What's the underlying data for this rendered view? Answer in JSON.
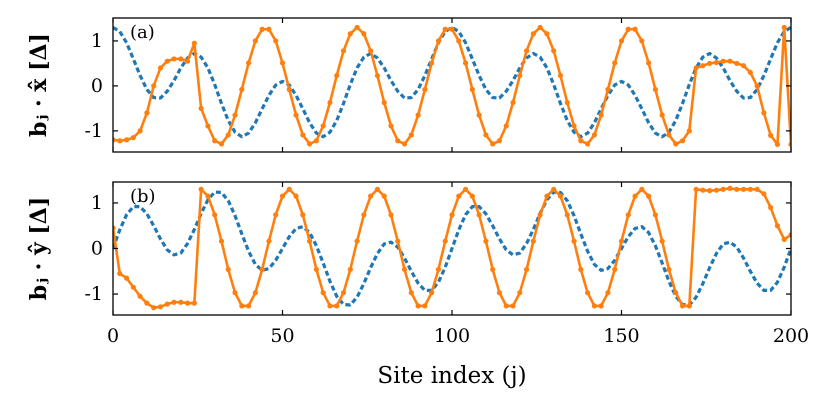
{
  "chart_data": [
    {
      "type": "line",
      "panel_label": "(a)",
      "ylabel": "bⱼ · x̂ [Δ]",
      "xtick_labels": false,
      "xlim": [
        0,
        200
      ],
      "xticks": [
        0,
        50,
        100,
        150,
        200
      ],
      "ylim": [
        -1.47,
        1.51
      ],
      "yticks": [
        -1,
        0,
        1
      ],
      "x": [
        0,
        2,
        4,
        6,
        8,
        10,
        12,
        14,
        16,
        18,
        20,
        22,
        24,
        26,
        28,
        30,
        32,
        34,
        36,
        38,
        40,
        42,
        44,
        46,
        48,
        50,
        52,
        54,
        56,
        58,
        60,
        62,
        64,
        66,
        68,
        70,
        72,
        74,
        76,
        78,
        80,
        82,
        84,
        86,
        88,
        90,
        92,
        94,
        96,
        98,
        100,
        102,
        104,
        106,
        108,
        110,
        112,
        114,
        116,
        118,
        120,
        122,
        124,
        126,
        128,
        130,
        132,
        134,
        136,
        138,
        140,
        142,
        144,
        146,
        148,
        150,
        152,
        154,
        156,
        158,
        160,
        162,
        164,
        166,
        168,
        170,
        172,
        174,
        176,
        178,
        180,
        182,
        184,
        186,
        188,
        190,
        192,
        194,
        196,
        198,
        200
      ],
      "series": [
        {
          "color": "#1f77b4",
          "style": "dashed",
          "values": [
            1.3,
            1.21,
            0.96,
            0.6,
            0.23,
            -0.08,
            -0.26,
            -0.27,
            -0.12,
            0.12,
            0.4,
            0.62,
            0.72,
            0.64,
            0.4,
            0.03,
            -0.39,
            -0.77,
            -1.03,
            -1.13,
            -1.05,
            -0.82,
            -0.51,
            -0.21,
            0.02,
            0.1,
            0.02,
            -0.21,
            -0.51,
            -0.82,
            -1.05,
            -1.13,
            -1.03,
            -0.77,
            -0.39,
            0.03,
            0.4,
            0.64,
            0.72,
            0.62,
            0.4,
            0.12,
            -0.12,
            -0.27,
            -0.26,
            -0.08,
            0.23,
            0.6,
            0.96,
            1.21,
            1.3,
            1.21,
            0.96,
            0.6,
            0.23,
            -0.08,
            -0.26,
            -0.27,
            -0.12,
            0.12,
            0.4,
            0.62,
            0.72,
            0.64,
            0.4,
            0.03,
            -0.39,
            -0.77,
            -1.03,
            -1.13,
            -1.05,
            -0.82,
            -0.51,
            -0.21,
            0.02,
            0.1,
            0.02,
            -0.21,
            -0.51,
            -0.82,
            -1.05,
            -1.13,
            -1.03,
            -0.77,
            -0.39,
            0.03,
            0.4,
            0.64,
            0.72,
            0.62,
            0.4,
            0.12,
            -0.12,
            -0.27,
            -0.26,
            -0.08,
            0.23,
            0.6,
            0.96,
            1.21,
            1.3
          ]
        },
        {
          "color": "#ff7f0e",
          "style": "markers",
          "values": [
            -1.2,
            -1.22,
            -1.2,
            -1.15,
            -1.0,
            -0.6,
            0.0,
            0.4,
            0.55,
            0.6,
            0.6,
            0.55,
            0.95,
            -0.5,
            -0.89,
            -1.22,
            -1.29,
            -1.09,
            -0.65,
            -0.08,
            0.51,
            1.0,
            1.26,
            1.26,
            1.0,
            0.51,
            -0.08,
            -0.65,
            -1.09,
            -1.29,
            -1.22,
            -0.89,
            -0.37,
            0.23,
            0.78,
            1.16,
            1.3,
            1.16,
            0.78,
            0.23,
            -0.37,
            -0.89,
            -1.22,
            -1.29,
            -1.09,
            -0.65,
            -0.08,
            0.51,
            1.0,
            1.26,
            1.26,
            1.0,
            0.51,
            -0.08,
            -0.65,
            -1.09,
            -1.29,
            -1.22,
            -0.89,
            -0.37,
            0.23,
            0.78,
            1.16,
            1.3,
            1.16,
            0.78,
            0.23,
            -0.37,
            -0.89,
            -1.22,
            -1.29,
            -1.09,
            -0.65,
            -0.08,
            0.51,
            1.0,
            1.26,
            1.26,
            1.0,
            0.51,
            -0.08,
            -0.65,
            -1.09,
            -1.29,
            -1.22,
            -1.0,
            0.4,
            0.45,
            0.5,
            0.52,
            0.55,
            0.55,
            0.5,
            0.45,
            0.3,
            0.0,
            -0.6,
            -1.1,
            -1.3,
            1.3,
            -1.3
          ]
        }
      ]
    },
    {
      "type": "line",
      "panel_label": "(b)",
      "ylabel": "bⱼ · ŷ [Δ]",
      "xlabel": "Site index (j)",
      "xlim": [
        0,
        200
      ],
      "xticks": [
        0,
        50,
        100,
        150,
        200
      ],
      "ylim": [
        -1.46,
        1.46
      ],
      "yticks": [
        -1,
        0,
        1
      ],
      "x": [
        0,
        2,
        4,
        6,
        8,
        10,
        12,
        14,
        16,
        18,
        20,
        22,
        24,
        26,
        28,
        30,
        32,
        34,
        36,
        38,
        40,
        42,
        44,
        46,
        48,
        50,
        52,
        54,
        56,
        58,
        60,
        62,
        64,
        66,
        68,
        70,
        72,
        74,
        76,
        78,
        80,
        82,
        84,
        86,
        88,
        90,
        92,
        94,
        96,
        98,
        100,
        102,
        104,
        106,
        108,
        110,
        112,
        114,
        116,
        118,
        120,
        122,
        124,
        126,
        128,
        130,
        132,
        134,
        136,
        138,
        140,
        142,
        144,
        146,
        148,
        150,
        152,
        154,
        156,
        158,
        160,
        162,
        164,
        166,
        168,
        170,
        172,
        174,
        176,
        178,
        180,
        182,
        184,
        186,
        188,
        190,
        192,
        194,
        196,
        198,
        200
      ],
      "series": [
        {
          "color": "#1f77b4",
          "style": "dashed",
          "values": [
            0,
            0.41,
            0.74,
            0.92,
            0.92,
            0.76,
            0.5,
            0.21,
            -0.03,
            -0.14,
            -0.1,
            0.11,
            0.42,
            0.77,
            1.07,
            1.24,
            1.23,
            1.05,
            0.72,
            0.32,
            -0.06,
            -0.35,
            -0.48,
            -0.44,
            -0.26,
            0,
            0.26,
            0.44,
            0.48,
            0.35,
            0.06,
            -0.32,
            -0.72,
            -1.05,
            -1.23,
            -1.24,
            -1.07,
            -0.77,
            -0.42,
            -0.11,
            0.1,
            0.14,
            0.03,
            -0.21,
            -0.5,
            -0.76,
            -0.92,
            -0.92,
            -0.74,
            -0.41,
            0,
            0.41,
            0.74,
            0.92,
            0.92,
            0.76,
            0.5,
            0.21,
            -0.03,
            -0.14,
            -0.1,
            0.11,
            0.42,
            0.77,
            1.07,
            1.24,
            1.23,
            1.05,
            0.72,
            0.32,
            -0.06,
            -0.35,
            -0.48,
            -0.44,
            -0.26,
            0,
            0.26,
            0.44,
            0.48,
            0.35,
            0.06,
            -0.32,
            -0.72,
            -1.05,
            -1.23,
            -1.24,
            -1.07,
            -0.77,
            -0.42,
            -0.11,
            0.1,
            0.14,
            0.03,
            -0.21,
            -0.5,
            -0.76,
            -0.92,
            -0.92,
            -0.74,
            -0.41,
            0
          ]
        },
        {
          "color": "#ff7f0e",
          "style": "markers",
          "values": [
            0.45,
            -0.55,
            -0.65,
            -0.85,
            -1.05,
            -1.2,
            -1.3,
            -1.28,
            -1.22,
            -1.18,
            -1.18,
            -1.2,
            -1.2,
            1.3,
            1.15,
            0.74,
            0.16,
            -0.46,
            -0.97,
            -1.26,
            -1.26,
            -0.97,
            -0.46,
            0.16,
            0.74,
            1.15,
            1.3,
            1.15,
            0.74,
            0.16,
            -0.46,
            -0.97,
            -1.26,
            -1.26,
            -0.97,
            -0.46,
            0.16,
            0.74,
            1.15,
            1.3,
            1.15,
            0.74,
            0.16,
            -0.46,
            -0.97,
            -1.26,
            -1.26,
            -0.97,
            -0.46,
            0.16,
            0.74,
            1.15,
            1.3,
            1.15,
            0.74,
            0.16,
            -0.46,
            -0.97,
            -1.26,
            -1.26,
            -0.97,
            -0.46,
            0.16,
            0.74,
            1.15,
            1.3,
            1.15,
            0.74,
            0.16,
            -0.46,
            -0.97,
            -1.26,
            -1.26,
            -0.97,
            -0.46,
            0.16,
            0.74,
            1.15,
            1.3,
            1.15,
            0.74,
            0.16,
            -0.46,
            -0.97,
            -1.26,
            -1.26,
            1.3,
            1.28,
            1.27,
            1.28,
            1.3,
            1.32,
            1.3,
            1.3,
            1.3,
            1.3,
            1.2,
            0.9,
            0.5,
            0.2,
            0.3
          ]
        }
      ]
    }
  ]
}
